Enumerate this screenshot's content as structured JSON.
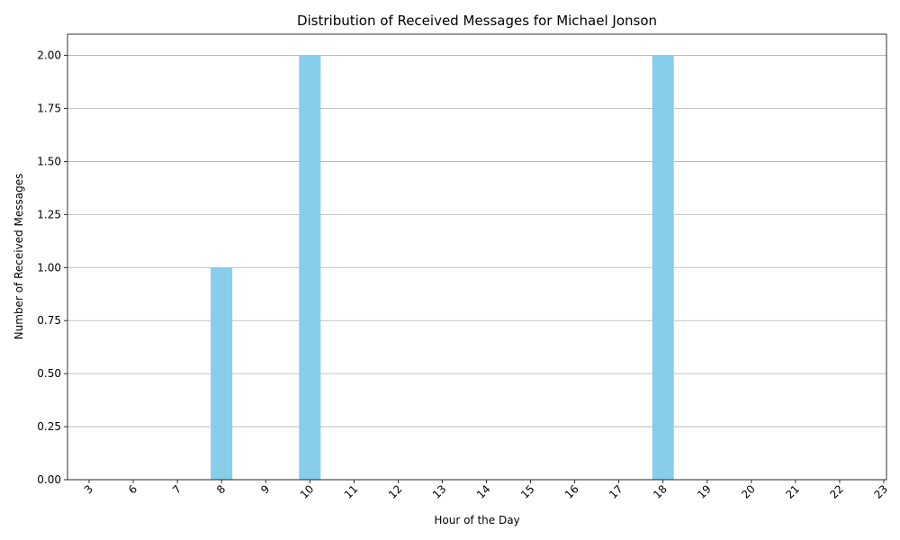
{
  "chart_data": {
    "type": "bar",
    "title": "Distribution of Received Messages for Michael Jonson",
    "xlabel": "Hour of the Day",
    "ylabel": "Number of Received Messages",
    "categories": [
      "3",
      "6",
      "7",
      "8",
      "9",
      "10",
      "11",
      "12",
      "13",
      "14",
      "15",
      "16",
      "17",
      "18",
      "19",
      "20",
      "21",
      "22",
      "23"
    ],
    "values": [
      0,
      0,
      0,
      1,
      0,
      2,
      0,
      0,
      0,
      0,
      0,
      0,
      0,
      2,
      0,
      0,
      0,
      0,
      0
    ],
    "ylim": [
      0,
      2.1
    ],
    "yticks": [
      "0.00",
      "0.25",
      "0.50",
      "0.75",
      "1.00",
      "1.25",
      "1.50",
      "1.75",
      "2.00"
    ],
    "grid": "y-axis",
    "bar_color": "#87ceeb",
    "x_tick_rotation": "45 degrees"
  }
}
